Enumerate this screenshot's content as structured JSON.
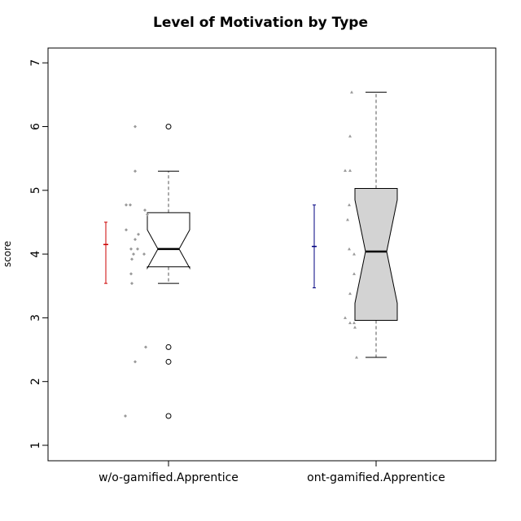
{
  "chart_data": {
    "type": "box",
    "title": "Level of Motivation by Type",
    "xlabel": "",
    "ylabel": "score",
    "ylim": [
      0.75,
      7.25
    ],
    "yticks": [
      1,
      2,
      3,
      4,
      5,
      6,
      7
    ],
    "categories": [
      "w/o-gamified.Apprentice",
      "ont-gamified.Apprentice"
    ],
    "groups": [
      {
        "name": "w/o-gamified.Apprentice",
        "box": {
          "whisker_low": 3.54,
          "q1": 3.8,
          "median": 4.08,
          "q3": 4.65,
          "whisker_high": 5.3,
          "notch_low": 3.78,
          "notch_high": 4.38
        },
        "fill": "#ffffff",
        "outliers": [
          6.0,
          2.54,
          2.31,
          1.46
        ],
        "mean": 4.15,
        "ci_low": 3.54,
        "ci_high": 4.5,
        "mean_color": "#cc0000",
        "point_marker": "diamond",
        "points": [
          {
            "x": -0.41,
            "y": 6.0
          },
          {
            "x": -0.41,
            "y": 5.3
          },
          {
            "x": -0.52,
            "y": 4.77
          },
          {
            "x": -0.47,
            "y": 4.77
          },
          {
            "x": -0.29,
            "y": 4.69
          },
          {
            "x": -0.26,
            "y": 4.62
          },
          {
            "x": -0.52,
            "y": 4.38
          },
          {
            "x": -0.37,
            "y": 4.31
          },
          {
            "x": -0.41,
            "y": 4.23
          },
          {
            "x": -0.38,
            "y": 4.08
          },
          {
            "x": -0.46,
            "y": 4.08
          },
          {
            "x": -0.43,
            "y": 4.0
          },
          {
            "x": -0.3,
            "y": 4.0
          },
          {
            "x": -0.45,
            "y": 3.92
          },
          {
            "x": -0.46,
            "y": 3.69
          },
          {
            "x": -0.45,
            "y": 3.54
          },
          {
            "x": -0.28,
            "y": 2.54
          },
          {
            "x": -0.41,
            "y": 2.31
          },
          {
            "x": -0.53,
            "y": 1.46
          }
        ]
      },
      {
        "name": "ont-gamified.Apprentice",
        "box": {
          "whisker_low": 2.38,
          "q1": 2.96,
          "median": 4.04,
          "q3": 5.03,
          "whisker_high": 6.54,
          "notch_low": 3.23,
          "notch_high": 4.85
        },
        "fill": "#d3d3d3",
        "outliers": [],
        "mean": 4.12,
        "ci_low": 3.47,
        "ci_high": 4.77,
        "mean_color": "#000080",
        "point_marker": "triangle",
        "points": [
          {
            "x": -0.3,
            "y": 6.54
          },
          {
            "x": -0.32,
            "y": 5.85
          },
          {
            "x": -0.38,
            "y": 5.31
          },
          {
            "x": -0.32,
            "y": 5.31
          },
          {
            "x": -0.33,
            "y": 4.77
          },
          {
            "x": -0.35,
            "y": 4.54
          },
          {
            "x": -0.33,
            "y": 4.08
          },
          {
            "x": -0.27,
            "y": 4.0
          },
          {
            "x": -0.27,
            "y": 3.69
          },
          {
            "x": -0.32,
            "y": 3.38
          },
          {
            "x": -0.38,
            "y": 3.0
          },
          {
            "x": -0.32,
            "y": 2.92
          },
          {
            "x": -0.27,
            "y": 2.92
          },
          {
            "x": -0.26,
            "y": 2.85
          },
          {
            "x": -0.24,
            "y": 2.38
          }
        ]
      }
    ],
    "grid": false,
    "colors": {
      "outlier": "#000000",
      "jitter": "#999999",
      "axis": "#000000"
    }
  }
}
